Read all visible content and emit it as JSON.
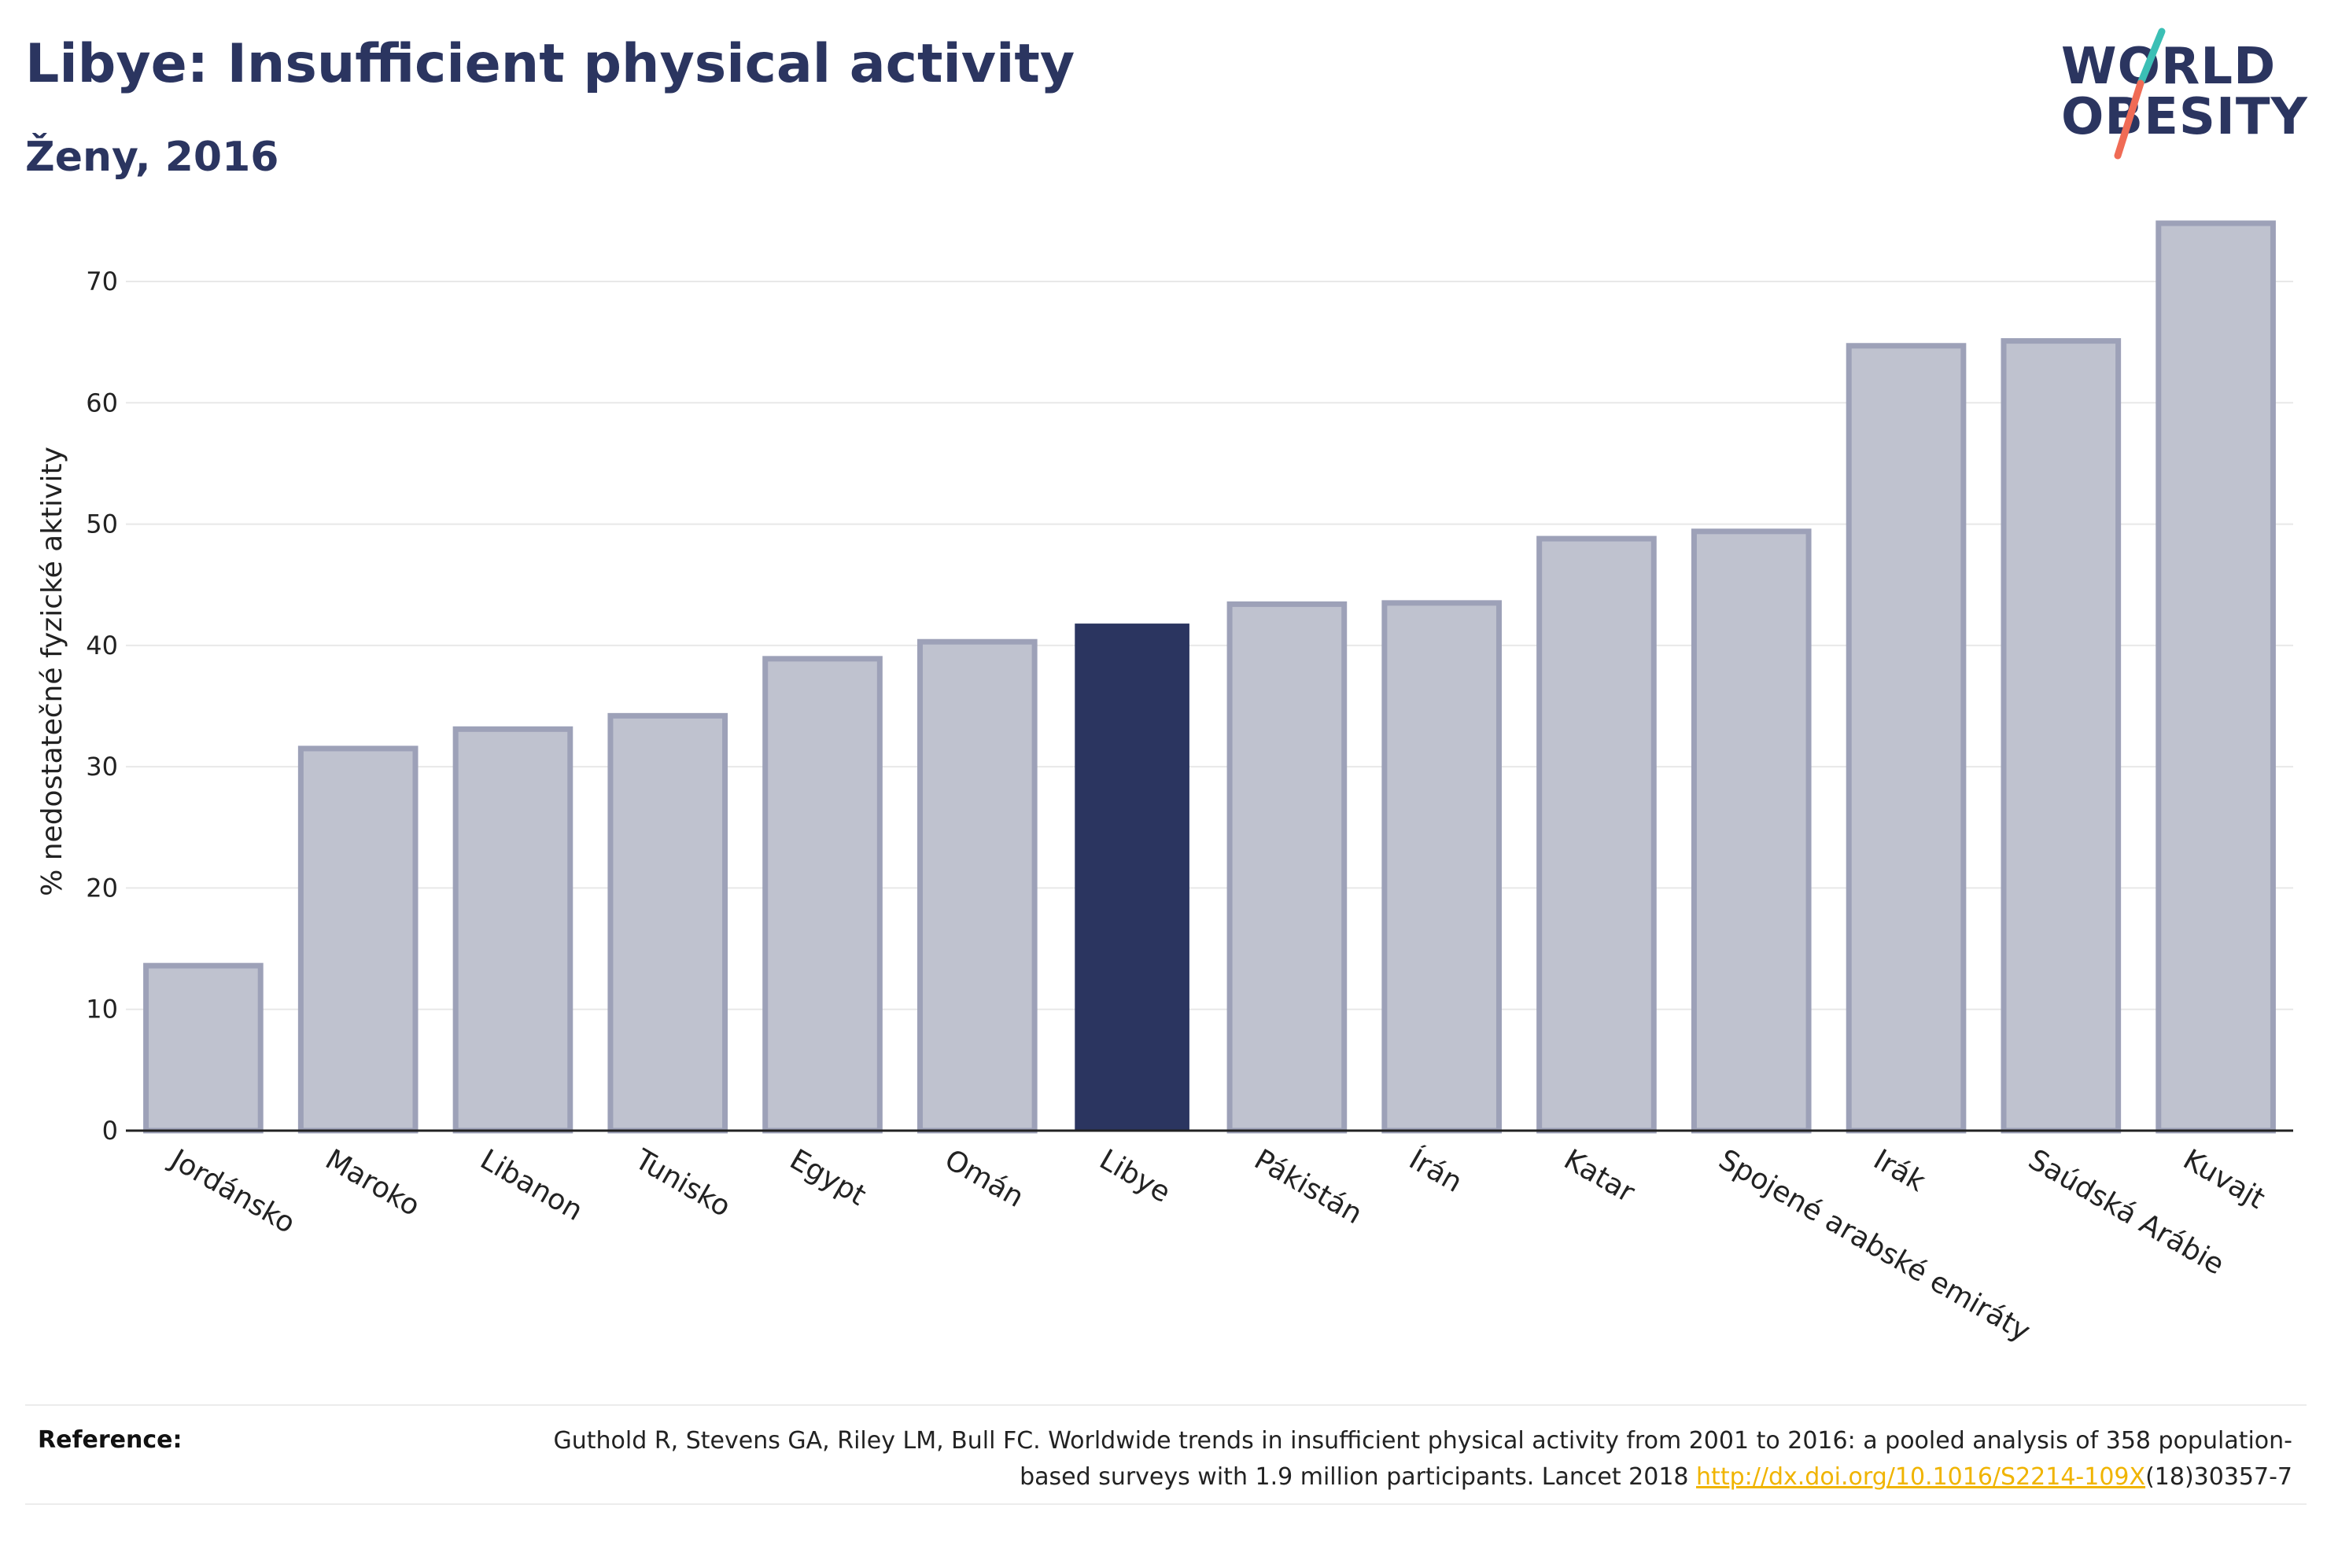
{
  "header": {
    "title": "Libye: Insufficient physical activity",
    "subtitle": "Ženy, 2016"
  },
  "logo": {
    "line1": "WORLD",
    "line2": "OBESITY",
    "accent_teal": "#3bbfb5",
    "accent_coral": "#f06b55"
  },
  "chart_data": {
    "type": "bar",
    "ylabel": "% nedostatečné fyzické aktivity",
    "xlabel": "",
    "ylim": [
      0,
      77
    ],
    "yticks": [
      0,
      10,
      20,
      30,
      40,
      50,
      60,
      70
    ],
    "grid": true,
    "categories": [
      "Jordánsko",
      "Maroko",
      "Libanon",
      "Tunisko",
      "Egypt",
      "Omán",
      "Libye",
      "Pákistán",
      "Írán",
      "Katar",
      "Spojené arabské emiráty",
      "Irák",
      "Saúdská Arábie",
      "Kuvajt"
    ],
    "values": [
      13.6,
      31.5,
      33.1,
      34.2,
      38.9,
      40.3,
      41.8,
      43.4,
      43.5,
      48.8,
      49.4,
      64.7,
      65.1,
      74.8
    ],
    "highlight": "Libye",
    "colors": {
      "bar": "#bfc2cf",
      "bar_border": "#9da1b8",
      "highlight": "#2b3560",
      "grid": "#e8e8e8",
      "axis": "#222222"
    }
  },
  "reference": {
    "label": "Reference:",
    "text": "Guthold R, Stevens GA, Riley LM, Bull FC. Worldwide trends in insufficient physical activity from 2001 to 2016: a pooled analysis of 358 population-based surveys with 1.9 million participants. Lancet 2018 ",
    "link": "http://dx.doi.org/10.1016/S2214-109X",
    "suffix": "(18)30357-7"
  }
}
